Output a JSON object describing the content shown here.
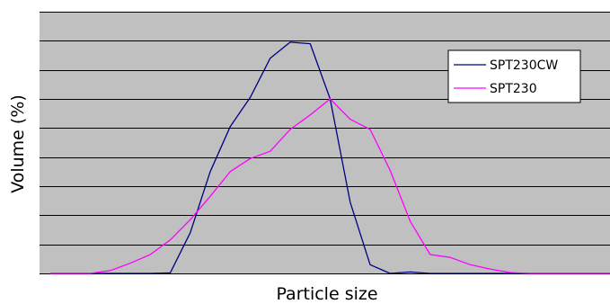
{
  "chart_data": {
    "type": "line",
    "xlabel": "Particle size",
    "ylabel": "Volume (%)",
    "xlim": [
      0,
      28
    ],
    "ylim": [
      0,
      9
    ],
    "grid": true,
    "legend_position": "top-right",
    "colors": {
      "plot_background": "#c0c0c0",
      "grid": "#000000"
    },
    "series": [
      {
        "name": "SPT230CW",
        "color": "#000080",
        "x": [
          0,
          1,
          2,
          3,
          4,
          5,
          6,
          7,
          8,
          9,
          10,
          11,
          12,
          13,
          14,
          15,
          16,
          17,
          18,
          19,
          20,
          21,
          22,
          23,
          24,
          25,
          26,
          27,
          28
        ],
        "y": [
          0,
          0,
          0,
          0,
          0,
          0,
          0.02,
          1.4,
          3.5,
          5.05,
          6.05,
          7.4,
          7.95,
          7.9,
          6.0,
          2.45,
          0.3,
          0.0,
          0.05,
          0.0,
          0.0,
          0.0,
          0.0,
          0.0,
          0.0,
          0.0,
          0.0,
          0.0,
          0.0
        ]
      },
      {
        "name": "SPT230",
        "color": "#ff00ff",
        "x": [
          0,
          1,
          2,
          3,
          4,
          5,
          6,
          7,
          8,
          9,
          10,
          11,
          12,
          13,
          14,
          15,
          16,
          17,
          18,
          19,
          20,
          21,
          22,
          23,
          24,
          25,
          26,
          27,
          28
        ],
        "y": [
          0,
          0,
          0,
          0.1,
          0.35,
          0.65,
          1.15,
          1.85,
          2.65,
          3.5,
          3.95,
          4.2,
          4.95,
          5.45,
          6.0,
          5.3,
          4.95,
          3.55,
          1.8,
          0.65,
          0.55,
          0.3,
          0.15,
          0.03,
          0.0,
          0.0,
          0.0,
          0.0,
          0.0
        ]
      }
    ]
  }
}
